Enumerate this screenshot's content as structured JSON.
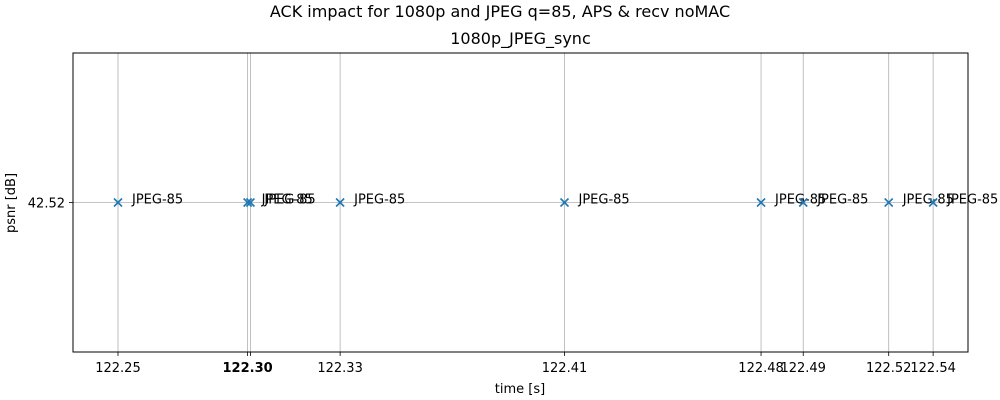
{
  "figure": {
    "suptitle": "ACK impact for 1080p and JPEG q=85, APS & recv noMAC",
    "subtitle": "1080p_JPEG_sync"
  },
  "chart_data": {
    "type": "scatter",
    "title": "1080p_JPEG_sync",
    "xlabel": "time [s]",
    "ylabel": "psnr [dB]",
    "marker": "x",
    "marker_color": "#1f77b4",
    "grid": true,
    "yticks": [
      "42.52"
    ],
    "ylim": [
      42.5,
      42.54
    ],
    "xlim": [
      122.2374,
      122.5557
    ],
    "xticks": [
      "122.25",
      "122.30",
      "122.33",
      "122.41",
      "122.48",
      "122.49",
      "122.52",
      "122.54"
    ],
    "points": [
      {
        "x": 122.2534,
        "y": 42.52,
        "label": "JPEG-85"
      },
      {
        "x": 122.2995,
        "y": 42.52,
        "label": "JPEG-85"
      },
      {
        "x": 122.3005,
        "y": 42.52,
        "label": "JPEG-85"
      },
      {
        "x": 122.3324,
        "y": 42.52,
        "label": "JPEG-85"
      },
      {
        "x": 122.4122,
        "y": 42.52,
        "label": "JPEG-85"
      },
      {
        "x": 122.4821,
        "y": 42.52,
        "label": "JPEG-85"
      },
      {
        "x": 122.4971,
        "y": 42.52,
        "label": "JPEG-85"
      },
      {
        "x": 122.5275,
        "y": 42.52,
        "label": "JPEG-85"
      },
      {
        "x": 122.5433,
        "y": 42.52,
        "label": "JPEG-85"
      }
    ]
  }
}
